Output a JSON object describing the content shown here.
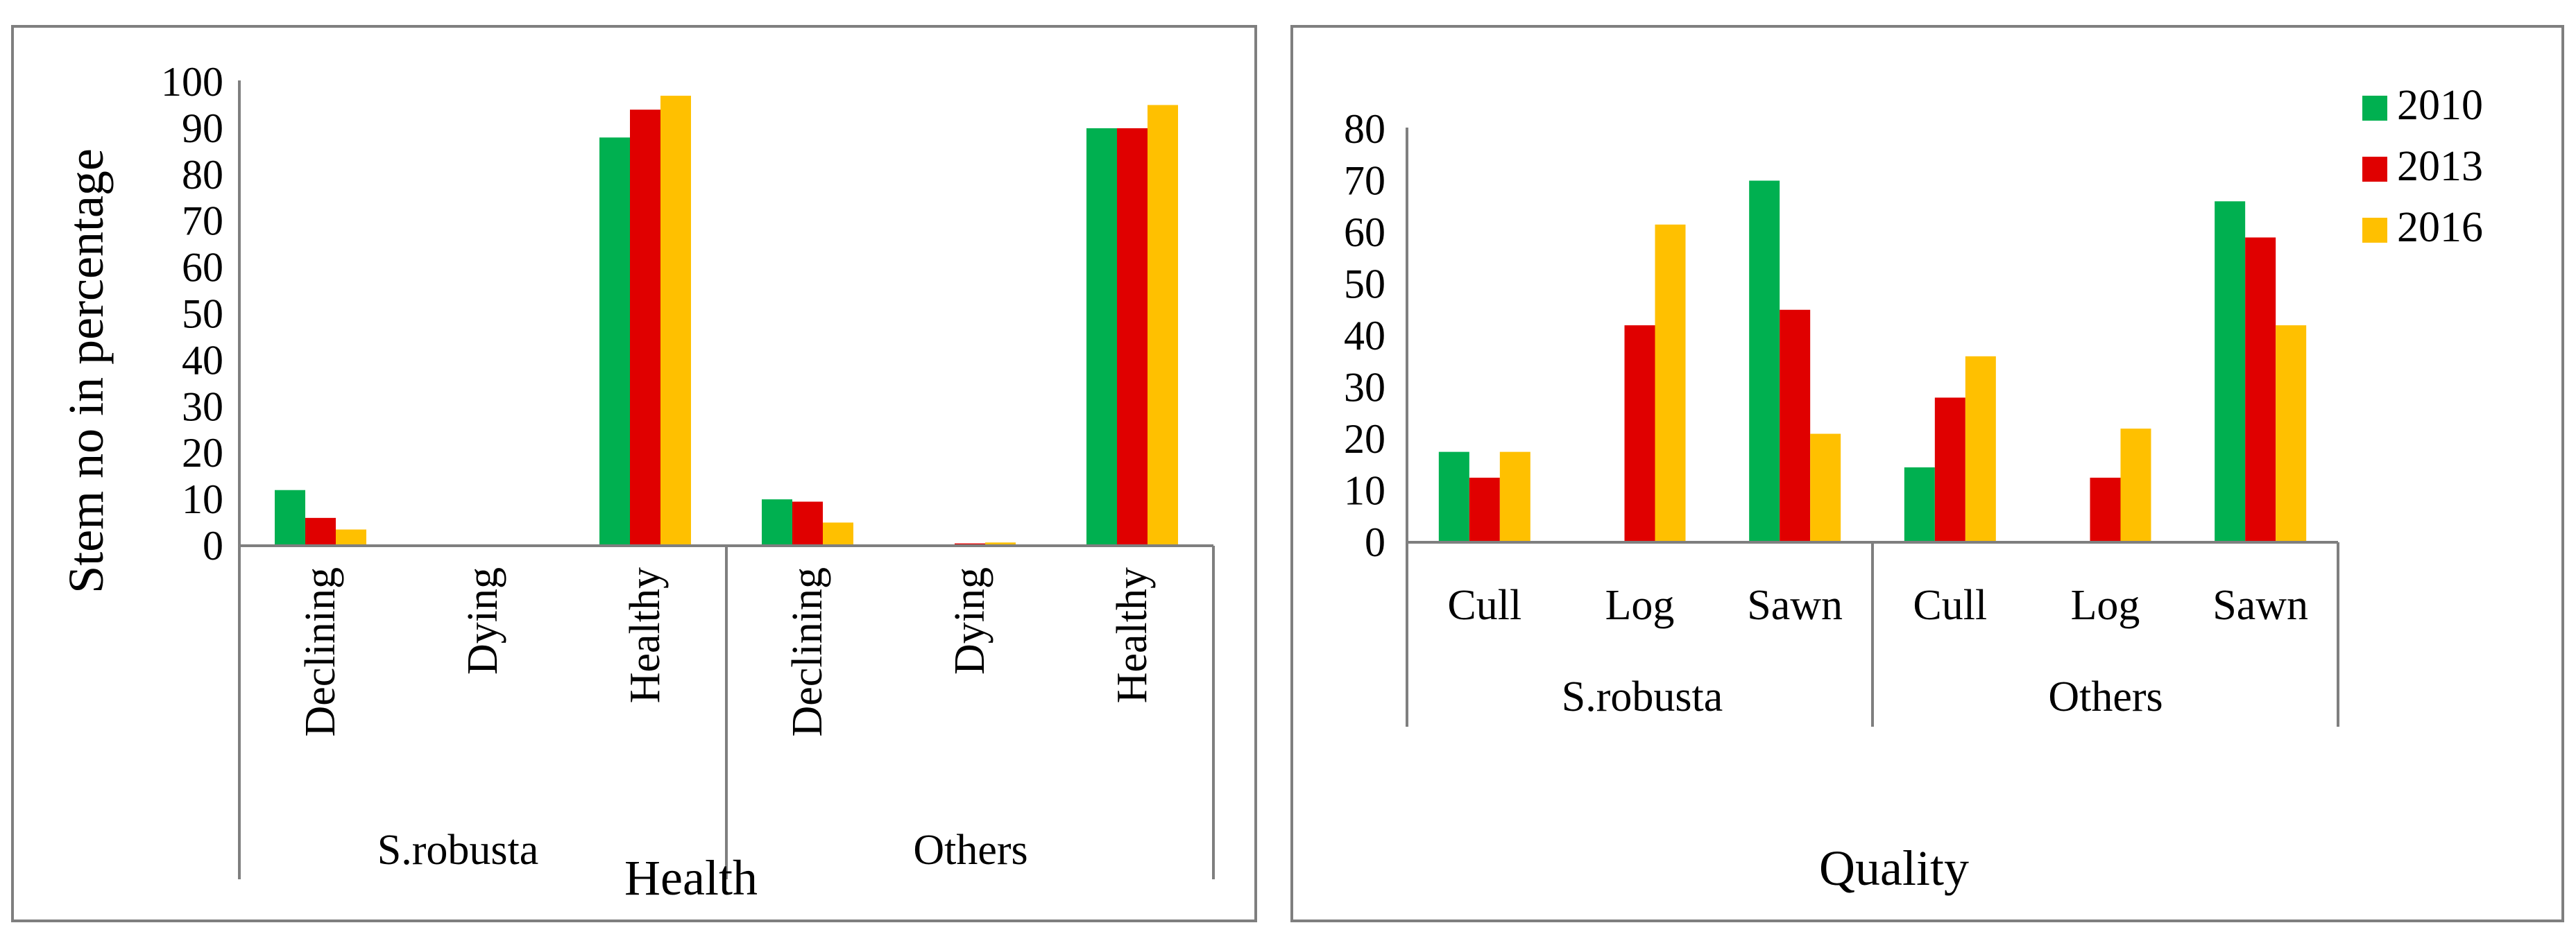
{
  "colors": {
    "series": [
      "#00B050",
      "#E00000",
      "#FFC000"
    ],
    "axis": "#7F7F7F",
    "frame": "#7F7F7F"
  },
  "chart_data": [
    {
      "type": "bar",
      "title": "",
      "xlabel": "Health",
      "ylabel": "Stem no in percentage",
      "ylim": [
        0,
        100
      ],
      "yticks": [
        "0",
        "10",
        "20",
        "30",
        "40",
        "50",
        "60",
        "70",
        "80",
        "90",
        "100"
      ],
      "groups": [
        "S.robusta",
        "Others"
      ],
      "categories": [
        "Declining",
        "Dying",
        "Healthy",
        "Declining",
        "Dying",
        "Healthy"
      ],
      "series": [
        {
          "name": "2010",
          "values": [
            12,
            0,
            88,
            10,
            0.3,
            90
          ]
        },
        {
          "name": "2013",
          "values": [
            6,
            0,
            94,
            9.5,
            0.5,
            90
          ]
        },
        {
          "name": "2016",
          "values": [
            3.5,
            0,
            97,
            5,
            0.7,
            95
          ]
        }
      ],
      "legend": "none"
    },
    {
      "type": "bar",
      "title": "",
      "xlabel": "Quality",
      "ylabel": "",
      "ylim": [
        0,
        80
      ],
      "yticks": [
        "0",
        "10",
        "20",
        "30",
        "40",
        "50",
        "60",
        "70",
        "80"
      ],
      "groups": [
        "S.robusta",
        "Others"
      ],
      "categories": [
        "Cull",
        "Log",
        "Sawn",
        "Cull",
        "Log",
        "Sawn"
      ],
      "series": [
        {
          "name": "2010",
          "values": [
            17.5,
            0,
            70,
            14.5,
            0,
            66
          ]
        },
        {
          "name": "2013",
          "values": [
            12.5,
            42,
            45,
            28,
            12.5,
            59
          ]
        },
        {
          "name": "2016",
          "values": [
            17.5,
            61.5,
            21,
            36,
            22,
            42
          ]
        }
      ],
      "legend": "top-right"
    }
  ]
}
